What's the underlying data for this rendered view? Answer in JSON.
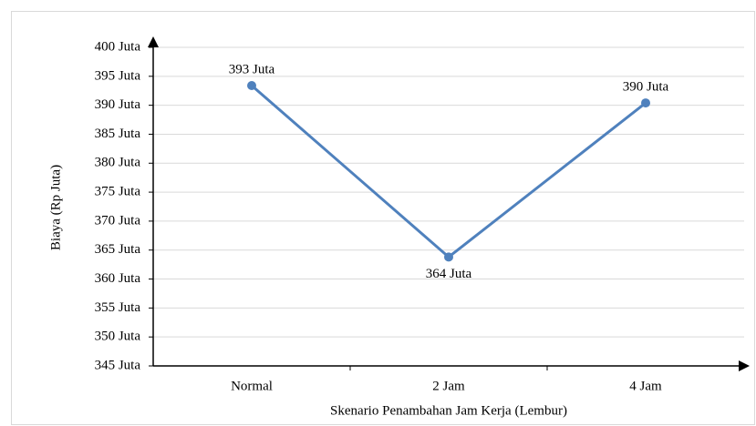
{
  "chart_data": {
    "type": "line",
    "y_label": "Biaya (Rp Juta)",
    "x_label": "Skenario Penambahan Jam Kerja (Lembur)",
    "categories": [
      "Normal",
      "2 Jam",
      "4 Jam"
    ],
    "series": [
      {
        "color": "#4f81bd",
        "values": [
          393.4,
          363.8,
          390.4
        ],
        "value_labels": [
          "393 Juta",
          "364 Juta",
          "390 Juta"
        ]
      }
    ],
    "ylim": [
      345,
      400
    ],
    "yticks": [
      {
        "value": 345,
        "label": "345 Juta"
      },
      {
        "value": 350,
        "label": "350 Juta"
      },
      {
        "value": 355,
        "label": "355 Juta"
      },
      {
        "value": 360,
        "label": "360 Juta"
      },
      {
        "value": 365,
        "label": "365 Juta"
      },
      {
        "value": 370,
        "label": "370 Juta"
      },
      {
        "value": 375,
        "label": "375 Juta"
      },
      {
        "value": 380,
        "label": "380 Juta"
      },
      {
        "value": 385,
        "label": "385 Juta"
      },
      {
        "value": 390,
        "label": "390 Juta"
      },
      {
        "value": 395,
        "label": "395 Juta"
      },
      {
        "value": 400,
        "label": "400 Juta"
      }
    ],
    "grid": true
  }
}
